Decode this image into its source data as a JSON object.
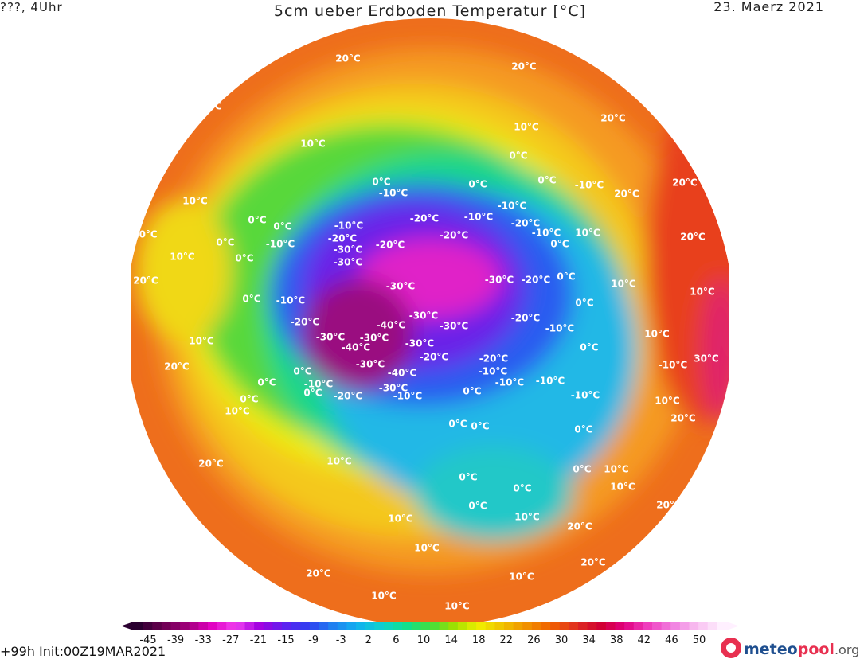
{
  "header": {
    "left": "???, 4Uhr",
    "title": "5cm ueber Erdboden Temperatur [°C]",
    "date": "23. Maerz 2021"
  },
  "footer": {
    "init": "+99h Init:00Z19MAR2021",
    "brand": [
      "meteo",
      "pool",
      ".org"
    ]
  },
  "colorbar": {
    "ticks": [
      "-45",
      "-39",
      "-33",
      "-27",
      "-21",
      "-15",
      "-9",
      "-3",
      "2",
      "6",
      "10",
      "14",
      "18",
      "22",
      "26",
      "30",
      "34",
      "38",
      "42",
      "46",
      "50"
    ]
  },
  "map": {
    "labels": [
      "20°C",
      "20°C",
      "20°C",
      "20°C",
      "10°C",
      "10°C",
      "0°C",
      "0°C",
      "-10°C",
      "0°C",
      "0°C",
      "-10°C",
      "20°C",
      "20°C",
      "10°C",
      "-10°C",
      "-20°C",
      "-10°C",
      "-20°C",
      "0°C",
      "0°C",
      "-10°C",
      "10°C",
      "0°C",
      "-10°C",
      "-20°C",
      "-20°C",
      "-20°C",
      "-10°C",
      "0°C",
      "10°C",
      "20°C",
      "10°C",
      "0°C",
      "-30°C",
      "-30°C",
      "20°C",
      "-30°C",
      "-20°C",
      "0°C",
      "-30°C",
      "10°C",
      "0°C",
      "-10°C",
      "0°C",
      "10°C",
      "-20°C",
      "-30°C",
      "-20°C",
      "-40°C",
      "-30°C",
      "-10°C",
      "-30°C",
      "-30°C",
      "-30°C",
      "-40°C",
      "0°C",
      "10°C",
      "10°C",
      "-20°C",
      "-20°C",
      "30°C",
      "20°C",
      "-30°C",
      "0°C",
      "-10°C",
      "-40°C",
      "-10°C",
      "-10°C",
      "-10°C",
      "0°C",
      "-10°C",
      "-30°C",
      "0°C",
      "-20°C",
      "-10°C",
      "0°C",
      "-10°C",
      "10°C",
      "0°C",
      "10°C",
      "20°C",
      "0°C",
      "0°C",
      "0°C",
      "20°C",
      "10°C",
      "0°C",
      "0°C",
      "10°C",
      "0°C",
      "10°C",
      "20°C",
      "0°C",
      "10°C",
      "10°C",
      "20°C",
      "10°C",
      "20°C",
      "20°C",
      "10°C",
      "10°C",
      "10°C"
    ]
  }
}
